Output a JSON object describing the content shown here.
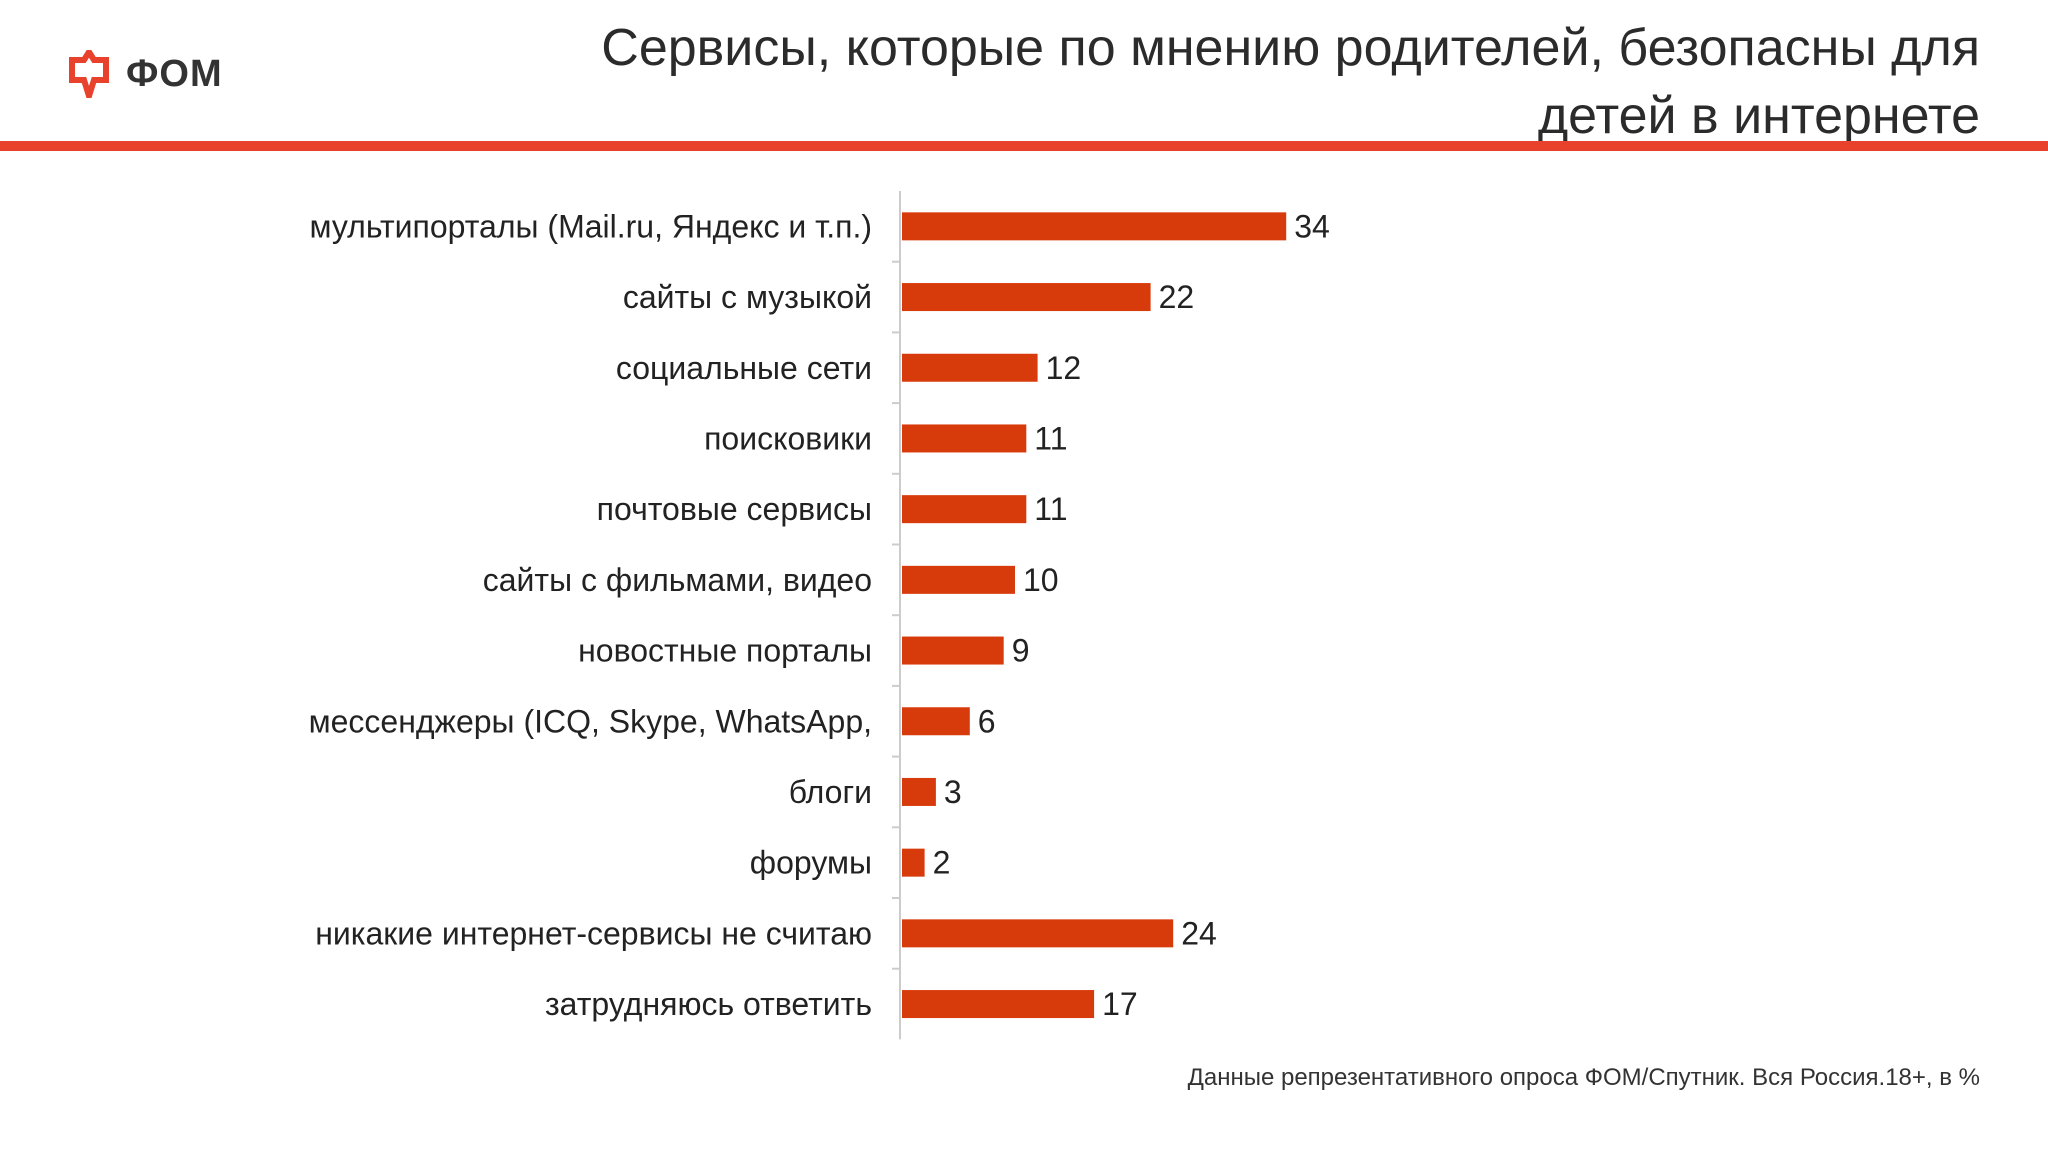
{
  "logo": {
    "text": "ФОМ",
    "icon": "fom-logo-icon",
    "color": "#e8412c"
  },
  "title": "Сервисы, которые по мнению родителей,  безопасны для\nдетей в интернете",
  "footnote": "Данные репрезентативного опроса ФОМ/Спутник. Вся Россия.18+, в %",
  "colors": {
    "bar": "#d83b0b",
    "accent": "#e8412c",
    "axis": "#cccccc"
  },
  "chart_data": {
    "type": "bar",
    "orientation": "horizontal",
    "categories": [
      "мультипорталы (Mail.ru, Яндекс и т.п.)",
      "сайты с музыкой",
      "социальные сети",
      "поисковики",
      "почтовые сервисы",
      "сайты с фильмами, видео",
      "новостные порталы",
      "мессенджеры (ICQ, Skype, WhatsApp,",
      "блоги",
      "форумы",
      "никакие интернет-сервисы не считаю",
      "затрудняюсь ответить"
    ],
    "values": [
      34,
      22,
      12,
      11,
      11,
      10,
      9,
      6,
      3,
      2,
      24,
      17
    ],
    "data_labels": [
      "34",
      "22",
      "12",
      "11",
      "11",
      "10",
      "9",
      "6",
      "3",
      "2",
      "24",
      "17"
    ],
    "unit": "%",
    "xlim": [
      0,
      100
    ],
    "grid": false,
    "legend": "none"
  }
}
